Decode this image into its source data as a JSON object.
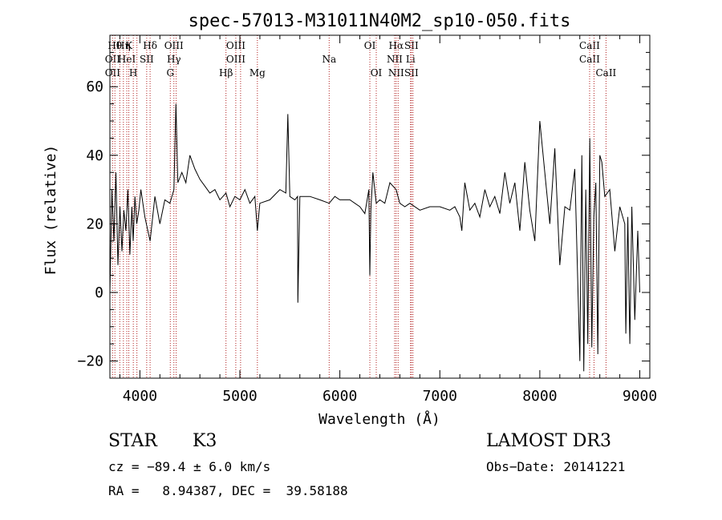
{
  "chart_data": {
    "type": "line",
    "title": "spec-57013-M31011N40M2_sp10-050.fits",
    "xlabel": "Wavelength (Å)",
    "ylabel": "Flux (relative)",
    "xlim": [
      3700,
      9100
    ],
    "ylim": [
      -25,
      75
    ],
    "xticks": [
      4000,
      5000,
      6000,
      7000,
      8000,
      9000
    ],
    "yticks": [
      -20,
      0,
      20,
      40,
      60
    ],
    "xtick_labels": [
      "4000",
      "5000",
      "6000",
      "7000",
      "8000",
      "9000"
    ],
    "ytick_labels": [
      "−20",
      "0",
      "20",
      "40",
      "60"
    ],
    "series": [
      {
        "name": "flux",
        "x": [
          3700,
          3720,
          3740,
          3760,
          3780,
          3800,
          3820,
          3840,
          3860,
          3880,
          3900,
          3920,
          3933,
          3950,
          3968,
          3990,
          4010,
          4050,
          4102,
          4150,
          4200,
          4250,
          4300,
          4340,
          4360,
          4380,
          4420,
          4460,
          4500,
          4550,
          4600,
          4650,
          4700,
          4750,
          4800,
          4861,
          4900,
          4950,
          5000,
          5050,
          5100,
          5150,
          5175,
          5200,
          5300,
          5400,
          5460,
          5480,
          5500,
          5550,
          5577,
          5580,
          5600,
          5700,
          5800,
          5893,
          5950,
          6000,
          6100,
          6200,
          6250,
          6290,
          6300,
          6310,
          6330,
          6364,
          6400,
          6450,
          6500,
          6563,
          6600,
          6650,
          6700,
          6800,
          6900,
          7000,
          7100,
          7150,
          7200,
          7220,
          7250,
          7300,
          7350,
          7400,
          7450,
          7500,
          7550,
          7600,
          7650,
          7700,
          7750,
          7800,
          7850,
          7900,
          7950,
          8000,
          8050,
          8100,
          8150,
          8200,
          8250,
          8300,
          8350,
          8400,
          8420,
          8440,
          8460,
          8480,
          8500,
          8520,
          8540,
          8560,
          8580,
          8600,
          8620,
          8650,
          8700,
          8750,
          8800,
          8850,
          8860,
          8880,
          8900,
          8920,
          8950,
          8980,
          9000
        ],
        "values": [
          0,
          30,
          15,
          35,
          8,
          25,
          12,
          24,
          18,
          30,
          11,
          25,
          15,
          28,
          20,
          24,
          30,
          22,
          15,
          28,
          20,
          27,
          26,
          30,
          55,
          32,
          35,
          32,
          40,
          36,
          33,
          31,
          29,
          30,
          27,
          29,
          25,
          28,
          27,
          30,
          26,
          28,
          18,
          26,
          27,
          30,
          29,
          52,
          28,
          27,
          28,
          -3,
          28,
          28,
          27,
          26,
          28,
          27,
          27,
          25,
          23,
          30,
          5,
          24,
          35,
          26,
          27,
          26,
          32,
          30,
          26,
          25,
          26,
          24,
          25,
          25,
          24,
          25,
          22,
          18,
          32,
          24,
          26,
          22,
          30,
          25,
          28,
          23,
          35,
          26,
          32,
          18,
          38,
          24,
          15,
          50,
          35,
          20,
          42,
          8,
          25,
          24,
          36,
          -20,
          40,
          -23,
          30,
          -15,
          45,
          -16,
          22,
          32,
          -18,
          40,
          38,
          28,
          30,
          12,
          25,
          20,
          -12,
          22,
          -15,
          25,
          -8,
          18,
          0
        ]
      }
    ],
    "lines": [
      {
        "wavelength": 3727,
        "labels": [
          "",
          "OII",
          "OII"
        ]
      },
      {
        "wavelength": 3750,
        "labels": [
          "Hθ",
          "",
          ""
        ]
      },
      {
        "wavelength": 3799,
        "labels": [
          "",
          "",
          ""
        ]
      },
      {
        "wavelength": 3835,
        "labels": [
          "Hη",
          "",
          ""
        ]
      },
      {
        "wavelength": 3869,
        "labels": [
          "",
          "HeI",
          ""
        ]
      },
      {
        "wavelength": 3889,
        "labels": [
          "K",
          "",
          ""
        ]
      },
      {
        "wavelength": 3934,
        "labels": [
          "",
          "",
          "H"
        ]
      },
      {
        "wavelength": 3970,
        "labels": [
          "",
          "",
          ""
        ]
      },
      {
        "wavelength": 4068,
        "labels": [
          "",
          "SII",
          ""
        ]
      },
      {
        "wavelength": 4102,
        "labels": [
          "Hδ",
          "",
          ""
        ]
      },
      {
        "wavelength": 4304,
        "labels": [
          "",
          "",
          "G"
        ]
      },
      {
        "wavelength": 4340,
        "labels": [
          "OIII",
          "Hγ",
          ""
        ]
      },
      {
        "wavelength": 4363,
        "labels": [
          "",
          "",
          ""
        ]
      },
      {
        "wavelength": 4861,
        "labels": [
          "",
          "",
          "Hβ"
        ]
      },
      {
        "wavelength": 4959,
        "labels": [
          "OIII",
          "OIII",
          ""
        ]
      },
      {
        "wavelength": 5007,
        "labels": [
          "",
          "",
          ""
        ]
      },
      {
        "wavelength": 5175,
        "labels": [
          "",
          "",
          "Mg"
        ]
      },
      {
        "wavelength": 5893,
        "labels": [
          "",
          "Na",
          ""
        ]
      },
      {
        "wavelength": 6300,
        "labels": [
          "OI",
          "",
          ""
        ]
      },
      {
        "wavelength": 6364,
        "labels": [
          "",
          "",
          "OI"
        ]
      },
      {
        "wavelength": 6548,
        "labels": [
          "",
          "NII",
          ""
        ]
      },
      {
        "wavelength": 6563,
        "labels": [
          "Hα",
          "",
          "NII"
        ]
      },
      {
        "wavelength": 6583,
        "labels": [
          "",
          "",
          ""
        ]
      },
      {
        "wavelength": 6707,
        "labels": [
          "",
          "Li",
          ""
        ]
      },
      {
        "wavelength": 6716,
        "labels": [
          "SII",
          "",
          "SII"
        ]
      },
      {
        "wavelength": 6731,
        "labels": [
          "",
          "",
          ""
        ]
      },
      {
        "wavelength": 8498,
        "labels": [
          "CaII",
          "CaII",
          ""
        ]
      },
      {
        "wavelength": 8542,
        "labels": [
          "",
          "",
          ""
        ]
      },
      {
        "wavelength": 8662,
        "labels": [
          "",
          "",
          "CaII"
        ]
      }
    ]
  },
  "info": {
    "object_class": "STAR",
    "subclass": "K3",
    "survey": "LAMOST DR3",
    "cz": "cz = −89.4 ± 6.0 km/s",
    "obs_date": "Obs−Date: 20141221",
    "coords": "RA =   8.94387, DEC =  39.58188"
  }
}
